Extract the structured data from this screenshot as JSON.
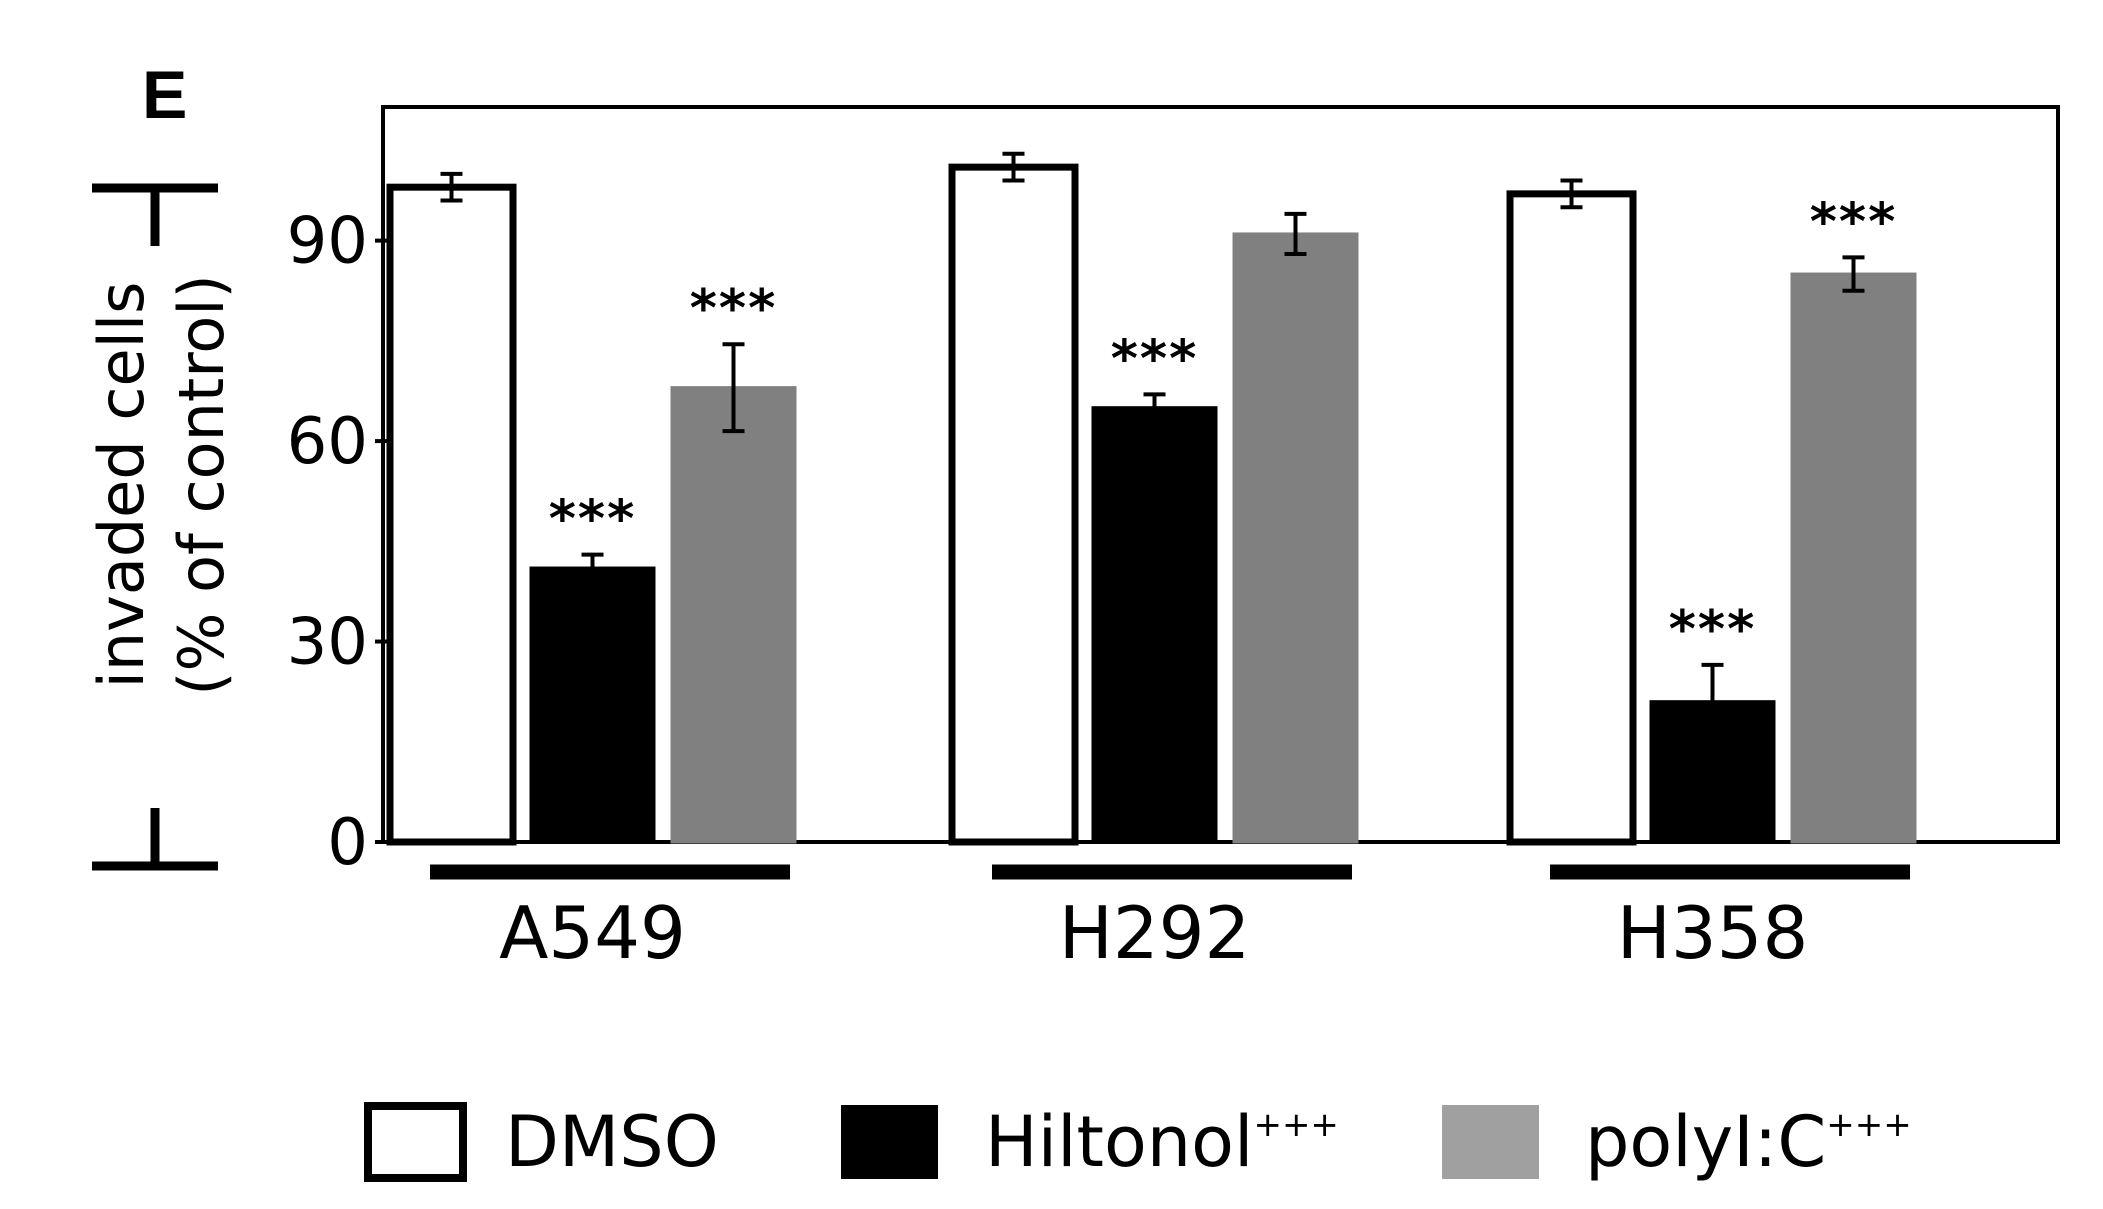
{
  "panel_label": "E",
  "colors": {
    "dmso_fill": "#ffffff",
    "hiltonol_fill": "#000000",
    "polyic_fill": "#808080",
    "legend_polyic_fill": "#a0a0a0",
    "frame": "#000000"
  },
  "chart_data": {
    "type": "bar",
    "ylabel": "invaded cells",
    "ylabel_line2": "(% of control)",
    "xlabel": "",
    "ylim": [
      0,
      110
    ],
    "yticks": [
      0,
      30,
      60,
      90
    ],
    "categories": [
      "A549",
      "H292",
      "H358"
    ],
    "series": [
      {
        "name": "DMSO",
        "values": [
          98,
          101,
          97
        ],
        "errors": [
          2,
          2,
          2
        ],
        "significance": [
          "",
          "",
          ""
        ]
      },
      {
        "name": "Hiltonol",
        "name_superscript": "+++",
        "values": [
          41,
          65,
          21
        ],
        "errors": [
          2,
          2,
          5.5
        ],
        "significance": [
          "***",
          "***",
          "***"
        ]
      },
      {
        "name": "polyI:C",
        "name_superscript": "+++",
        "values": [
          68,
          91,
          85
        ],
        "errors": [
          6.5,
          3,
          2.5
        ],
        "significance": [
          "***",
          "",
          "***"
        ]
      }
    ],
    "grid": false,
    "legend_position": "bottom"
  }
}
